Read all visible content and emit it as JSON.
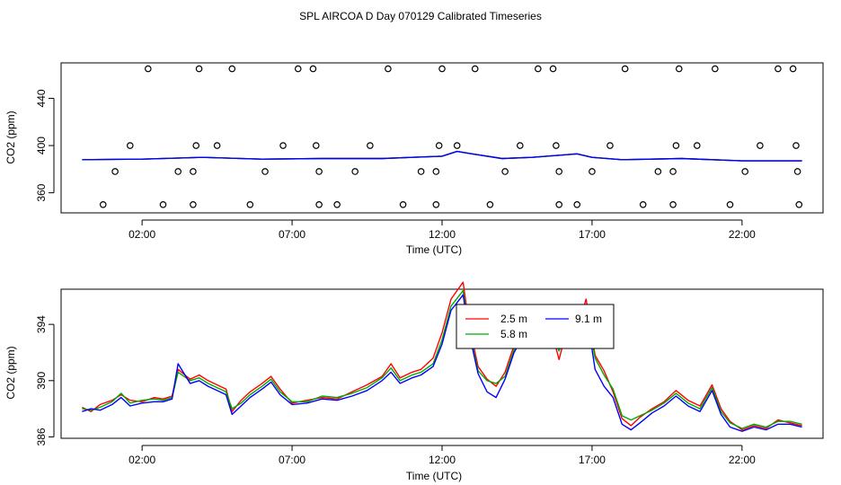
{
  "chart_data": [
    {
      "type": "scatter+line",
      "title": "SPL AIRCOA D  Day 070129  Calibrated Timeseries",
      "xlabel": "Time (UTC)",
      "ylabel": "CO2 (ppm)",
      "x_ticks": [
        "02:00",
        "07:00",
        "12:00",
        "17:00",
        "22:00"
      ],
      "x_tick_hours": [
        2,
        7,
        12,
        17,
        22
      ],
      "y_ticks": [
        360,
        400,
        440
      ],
      "xlim": [
        -0.7,
        24.7
      ],
      "ylim": [
        343,
        470
      ],
      "calibration_points": [
        {
          "x": 0.7,
          "y": 350
        },
        {
          "x": 1.1,
          "y": 378
        },
        {
          "x": 1.6,
          "y": 400
        },
        {
          "x": 2.2,
          "y": 465
        },
        {
          "x": 2.7,
          "y": 350
        },
        {
          "x": 3.2,
          "y": 378
        },
        {
          "x": 3.7,
          "y": 378
        },
        {
          "x": 3.7,
          "y": 350
        },
        {
          "x": 3.8,
          "y": 400
        },
        {
          "x": 3.9,
          "y": 465
        },
        {
          "x": 4.5,
          "y": 400
        },
        {
          "x": 5.0,
          "y": 465
        },
        {
          "x": 5.6,
          "y": 350
        },
        {
          "x": 6.1,
          "y": 378
        },
        {
          "x": 6.7,
          "y": 400
        },
        {
          "x": 7.2,
          "y": 465
        },
        {
          "x": 7.7,
          "y": 465
        },
        {
          "x": 7.8,
          "y": 400
        },
        {
          "x": 7.9,
          "y": 378
        },
        {
          "x": 7.9,
          "y": 350
        },
        {
          "x": 8.5,
          "y": 350
        },
        {
          "x": 9.1,
          "y": 378
        },
        {
          "x": 9.6,
          "y": 400
        },
        {
          "x": 10.2,
          "y": 465
        },
        {
          "x": 10.7,
          "y": 350
        },
        {
          "x": 11.3,
          "y": 378
        },
        {
          "x": 11.8,
          "y": 378
        },
        {
          "x": 11.8,
          "y": 350
        },
        {
          "x": 11.9,
          "y": 400
        },
        {
          "x": 12.0,
          "y": 465
        },
        {
          "x": 12.5,
          "y": 400
        },
        {
          "x": 13.1,
          "y": 465
        },
        {
          "x": 13.6,
          "y": 350
        },
        {
          "x": 14.1,
          "y": 378
        },
        {
          "x": 14.6,
          "y": 400
        },
        {
          "x": 15.2,
          "y": 465
        },
        {
          "x": 15.7,
          "y": 465
        },
        {
          "x": 15.8,
          "y": 400
        },
        {
          "x": 15.9,
          "y": 378
        },
        {
          "x": 15.9,
          "y": 350
        },
        {
          "x": 16.5,
          "y": 350
        },
        {
          "x": 17.0,
          "y": 378
        },
        {
          "x": 17.6,
          "y": 400
        },
        {
          "x": 18.1,
          "y": 465
        },
        {
          "x": 18.7,
          "y": 350
        },
        {
          "x": 19.2,
          "y": 378
        },
        {
          "x": 19.7,
          "y": 378
        },
        {
          "x": 19.7,
          "y": 350
        },
        {
          "x": 19.8,
          "y": 400
        },
        {
          "x": 19.9,
          "y": 465
        },
        {
          "x": 20.5,
          "y": 400
        },
        {
          "x": 21.1,
          "y": 465
        },
        {
          "x": 21.6,
          "y": 350
        },
        {
          "x": 22.1,
          "y": 378
        },
        {
          "x": 22.6,
          "y": 400
        },
        {
          "x": 23.2,
          "y": 465
        },
        {
          "x": 23.7,
          "y": 465
        },
        {
          "x": 23.8,
          "y": 400
        },
        {
          "x": 23.85,
          "y": 378
        },
        {
          "x": 23.9,
          "y": 350
        }
      ],
      "series": [
        {
          "color": "#ff0000",
          "x": [
            0,
            2,
            4,
            6,
            8,
            10,
            11,
            12,
            12.5,
            13,
            14,
            15,
            16.5,
            17,
            18,
            20,
            22,
            24
          ],
          "y": [
            388,
            388.5,
            390,
            388.5,
            389,
            389,
            390,
            391,
            395,
            393,
            389,
            390,
            393,
            390,
            388,
            389,
            387,
            387
          ]
        },
        {
          "color": "#00aa00",
          "x": [
            0,
            2,
            4,
            6,
            8,
            10,
            11,
            12,
            12.5,
            13,
            14,
            15,
            16.5,
            17,
            18,
            20,
            22,
            24
          ],
          "y": [
            388,
            388.5,
            390,
            388.5,
            389,
            389,
            390,
            391,
            395,
            393,
            389,
            390,
            393,
            390,
            388,
            389,
            387,
            387
          ]
        },
        {
          "color": "#0000ff",
          "x": [
            0,
            2,
            4,
            6,
            8,
            10,
            11,
            12,
            12.5,
            13,
            14,
            15,
            16.5,
            17,
            18,
            20,
            22,
            24
          ],
          "y": [
            388,
            388.5,
            390,
            388.5,
            389,
            389,
            390,
            391,
            395,
            393,
            389,
            390,
            393,
            390,
            388,
            389,
            387,
            387
          ]
        }
      ]
    },
    {
      "type": "line",
      "xlabel": "Time (UTC)",
      "ylabel": "CO2 (ppm)",
      "x_ticks": [
        "02:00",
        "07:00",
        "12:00",
        "17:00",
        "22:00"
      ],
      "x_tick_hours": [
        2,
        7,
        12,
        17,
        22
      ],
      "y_ticks": [
        386,
        390,
        394
      ],
      "xlim": [
        -0.7,
        24.7
      ],
      "ylim": [
        385.9,
        396.5
      ],
      "legend": {
        "placement": "top-center",
        "entries": [
          "2.5 m",
          "5.8 m",
          "9.1 m"
        ]
      },
      "series": [
        {
          "name": "2.5 m",
          "color": "#ff0000",
          "x": [
            0,
            0.3,
            0.6,
            1.0,
            1.3,
            1.6,
            2.0,
            2.4,
            2.7,
            3.0,
            3.2,
            3.6,
            3.9,
            4.2,
            4.5,
            4.8,
            5.0,
            5.3,
            5.6,
            6.0,
            6.3,
            6.6,
            7.0,
            7.5,
            8.0,
            8.5,
            9.0,
            9.5,
            10.0,
            10.3,
            10.6,
            11.0,
            11.3,
            11.7,
            12.0,
            12.3,
            12.7,
            12.9,
            13.2,
            13.5,
            13.8,
            14.1,
            14.4,
            14.7,
            15.0,
            15.3,
            15.6,
            15.9,
            16.2,
            16.5,
            16.8,
            17.1,
            17.4,
            17.7,
            18.0,
            18.3,
            18.6,
            19.0,
            19.4,
            19.8,
            20.2,
            20.6,
            21.0,
            21.3,
            21.6,
            22.0,
            22.4,
            22.8,
            23.2,
            23.6,
            24.0
          ],
          "y": [
            388.1,
            387.8,
            388.3,
            388.6,
            389.0,
            388.6,
            388.5,
            388.8,
            388.7,
            388.9,
            390.8,
            390.1,
            390.4,
            390.0,
            389.7,
            389.4,
            387.8,
            388.6,
            389.2,
            389.8,
            390.3,
            389.4,
            388.4,
            388.6,
            388.8,
            388.7,
            389.2,
            389.7,
            390.3,
            391.2,
            390.2,
            390.6,
            390.8,
            391.6,
            393.4,
            395.8,
            397.0,
            394.0,
            391.0,
            390.1,
            389.6,
            390.6,
            392.5,
            393.6,
            394.3,
            393.5,
            393.9,
            391.5,
            394.0,
            393.6,
            395.8,
            391.8,
            390.7,
            389.2,
            387.3,
            386.8,
            387.4,
            388.0,
            388.5,
            389.3,
            388.6,
            388.2,
            389.7,
            388.0,
            387.1,
            386.5,
            386.8,
            386.6,
            387.2,
            387.0,
            386.8
          ]
        },
        {
          "name": "5.8 m",
          "color": "#00aa00",
          "x": [
            0,
            0.3,
            0.6,
            1.0,
            1.3,
            1.6,
            2.0,
            2.4,
            2.7,
            3.0,
            3.2,
            3.6,
            3.9,
            4.2,
            4.5,
            4.8,
            5.0,
            5.3,
            5.6,
            6.0,
            6.3,
            6.6,
            7.0,
            7.5,
            8.0,
            8.5,
            9.0,
            9.5,
            10.0,
            10.3,
            10.6,
            11.0,
            11.3,
            11.7,
            12.0,
            12.3,
            12.7,
            12.9,
            13.2,
            13.5,
            13.8,
            14.1,
            14.4,
            14.7,
            15.0,
            15.3,
            15.6,
            15.9,
            16.2,
            16.5,
            16.8,
            17.1,
            17.4,
            17.7,
            18.0,
            18.3,
            18.6,
            19.0,
            19.4,
            19.8,
            20.2,
            20.6,
            21.0,
            21.3,
            21.6,
            22.0,
            22.4,
            22.8,
            23.2,
            23.6,
            24.0
          ],
          "y": [
            388.0,
            387.9,
            388.1,
            388.5,
            389.1,
            388.4,
            388.6,
            388.7,
            388.6,
            388.8,
            390.6,
            390.0,
            390.2,
            389.8,
            389.5,
            389.2,
            388.0,
            388.4,
            389.0,
            389.6,
            390.1,
            389.2,
            388.5,
            388.5,
            388.9,
            388.8,
            389.1,
            389.5,
            390.2,
            390.9,
            390.0,
            390.4,
            390.6,
            391.2,
            392.9,
            395.3,
            396.4,
            393.6,
            390.7,
            390.0,
            389.8,
            390.3,
            392.2,
            393.3,
            394.0,
            393.3,
            393.6,
            392.1,
            393.7,
            393.4,
            395.2,
            391.6,
            390.4,
            389.4,
            387.5,
            387.2,
            387.5,
            387.9,
            388.4,
            389.1,
            388.4,
            388.0,
            389.5,
            387.8,
            387.0,
            386.6,
            386.9,
            386.7,
            387.1,
            387.1,
            386.9
          ]
        },
        {
          "name": "9.1 m",
          "color": "#0000ff",
          "x": [
            0,
            0.3,
            0.6,
            1.0,
            1.3,
            1.6,
            2.0,
            2.4,
            2.7,
            3.0,
            3.2,
            3.6,
            3.9,
            4.2,
            4.5,
            4.8,
            5.0,
            5.3,
            5.6,
            6.0,
            6.3,
            6.6,
            7.0,
            7.5,
            8.0,
            8.5,
            9.0,
            9.5,
            10.0,
            10.3,
            10.6,
            11.0,
            11.3,
            11.7,
            12.0,
            12.3,
            12.7,
            12.9,
            13.2,
            13.5,
            13.8,
            14.1,
            14.4,
            14.7,
            15.0,
            15.3,
            15.6,
            15.9,
            16.2,
            16.5,
            16.8,
            17.1,
            17.4,
            17.7,
            18.0,
            18.3,
            18.6,
            19.0,
            19.4,
            19.8,
            20.2,
            20.6,
            21.0,
            21.3,
            21.6,
            22.0,
            22.4,
            22.8,
            23.2,
            23.6,
            24.0
          ],
          "y": [
            387.8,
            388.0,
            387.9,
            388.3,
            388.8,
            388.2,
            388.4,
            388.5,
            388.5,
            388.7,
            391.2,
            389.8,
            390.0,
            389.6,
            389.3,
            389.0,
            387.6,
            388.2,
            388.8,
            389.4,
            389.9,
            389.0,
            388.3,
            388.4,
            388.7,
            388.6,
            388.9,
            389.3,
            390.0,
            390.6,
            389.8,
            390.2,
            390.4,
            391.0,
            392.6,
            395.0,
            396.1,
            393.4,
            390.5,
            389.2,
            388.8,
            390.1,
            392.0,
            393.1,
            393.8,
            393.1,
            393.4,
            392.5,
            393.5,
            393.2,
            395.0,
            390.8,
            389.6,
            388.8,
            386.9,
            386.5,
            387.0,
            387.7,
            388.2,
            388.9,
            388.2,
            387.8,
            389.3,
            387.6,
            386.7,
            386.4,
            386.7,
            386.5,
            386.9,
            386.9,
            386.7
          ]
        }
      ]
    }
  ]
}
